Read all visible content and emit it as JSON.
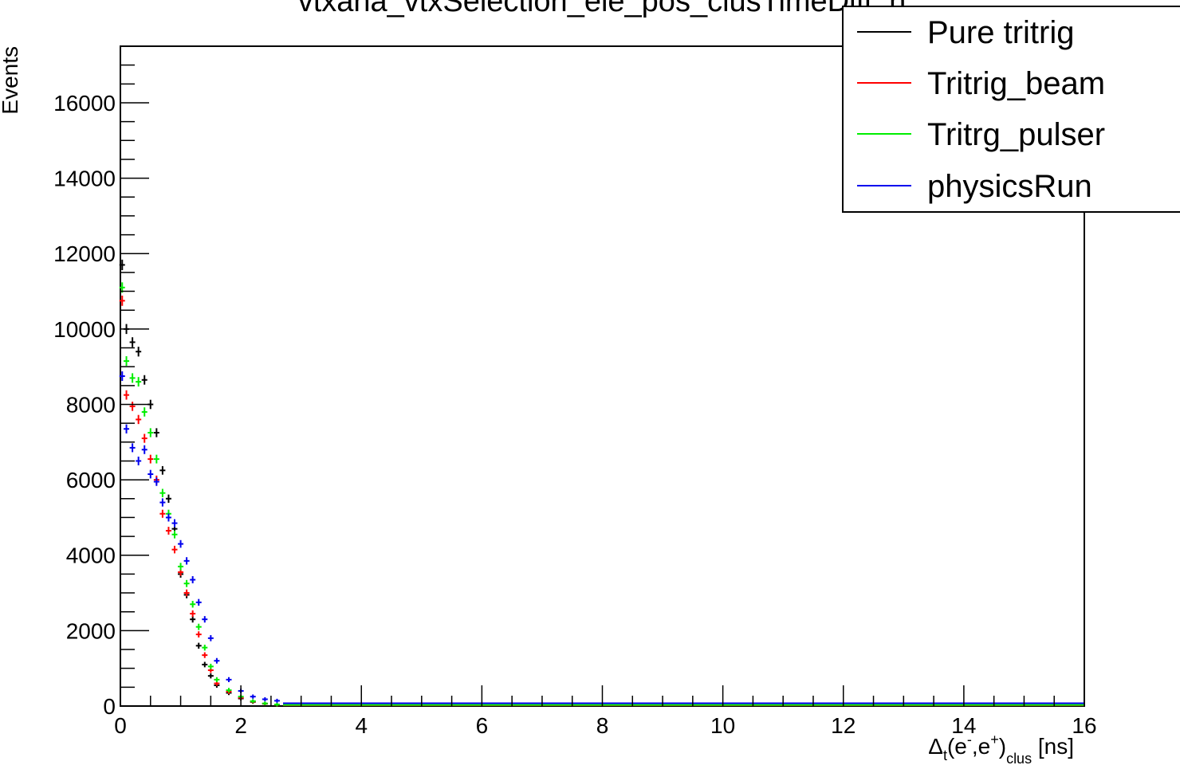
{
  "chart_data": {
    "type": "scatter",
    "title": "vtxana_vtxSelection_ele_pos_clusTimeDiff_h",
    "xlabel": {
      "delta": "Δ",
      "delta_sub": "t",
      "paren_open": "(e",
      "minus_sup": "-",
      "comma": ",e",
      "plus_sup": "+",
      "paren_close": ")",
      "sub": "clus",
      "unit": " [ns]"
    },
    "ylabel": "Events",
    "xlim": [
      0,
      16
    ],
    "ylim": [
      0,
      17500
    ],
    "x_ticks": [
      "0",
      "2",
      "4",
      "6",
      "8",
      "10",
      "12",
      "14",
      "16"
    ],
    "y_ticks": [
      "0",
      "2000",
      "4000",
      "6000",
      "8000",
      "10000",
      "12000",
      "14000",
      "16000"
    ],
    "legend_position": "top-right",
    "tail": {
      "from_x": 2.7,
      "to_x": 16,
      "values": {
        "Pure tritrig": 20,
        "Tritrig_beam": 20,
        "Tritrg_pulser": 30,
        "physicsRun": 75
      }
    },
    "series": [
      {
        "name": "Pure tritrig",
        "color": "#000000",
        "x": [
          0.03,
          0.1,
          0.2,
          0.3,
          0.4,
          0.5,
          0.6,
          0.7,
          0.8,
          0.9,
          1.0,
          1.1,
          1.2,
          1.3,
          1.4,
          1.5,
          1.6,
          1.8,
          2.0,
          2.2,
          2.4,
          2.6
        ],
        "y": [
          11700,
          10000,
          9650,
          9400,
          8650,
          8000,
          7250,
          6250,
          5500,
          4700,
          3500,
          2950,
          2300,
          1600,
          1100,
          800,
          550,
          350,
          200,
          110,
          60,
          35
        ]
      },
      {
        "name": "Tritrig_beam",
        "color": "#ff0000",
        "x": [
          0.03,
          0.1,
          0.2,
          0.3,
          0.4,
          0.5,
          0.6,
          0.7,
          0.8,
          0.9,
          1.0,
          1.1,
          1.2,
          1.3,
          1.4,
          1.5,
          1.6,
          1.8,
          2.0,
          2.2,
          2.4,
          2.6
        ],
        "y": [
          10750,
          8250,
          7950,
          7600,
          7100,
          6550,
          6000,
          5100,
          4650,
          4150,
          3550,
          3000,
          2450,
          1900,
          1350,
          950,
          600,
          380,
          220,
          120,
          65,
          35
        ]
      },
      {
        "name": "Tritrg_pulser",
        "color": "#00ee00",
        "x": [
          0.03,
          0.1,
          0.2,
          0.3,
          0.4,
          0.5,
          0.6,
          0.7,
          0.8,
          0.9,
          1.0,
          1.1,
          1.2,
          1.3,
          1.4,
          1.5,
          1.6,
          1.8,
          2.0,
          2.2,
          2.4,
          2.6
        ],
        "y": [
          11100,
          9150,
          8700,
          8600,
          7800,
          7250,
          6550,
          5650,
          5100,
          4550,
          3700,
          3250,
          2700,
          2100,
          1550,
          1050,
          700,
          420,
          250,
          130,
          70,
          40
        ]
      },
      {
        "name": "physicsRun",
        "color": "#0000ee",
        "x": [
          0.03,
          0.1,
          0.2,
          0.3,
          0.4,
          0.5,
          0.6,
          0.7,
          0.8,
          0.9,
          1.0,
          1.1,
          1.2,
          1.3,
          1.4,
          1.5,
          1.6,
          1.8,
          2.0,
          2.2,
          2.4,
          2.6
        ],
        "y": [
          8750,
          7350,
          6850,
          6500,
          6800,
          6150,
          5950,
          5400,
          5000,
          4850,
          4300,
          3850,
          3350,
          2750,
          2300,
          1800,
          1200,
          700,
          400,
          250,
          180,
          140
        ]
      }
    ]
  }
}
